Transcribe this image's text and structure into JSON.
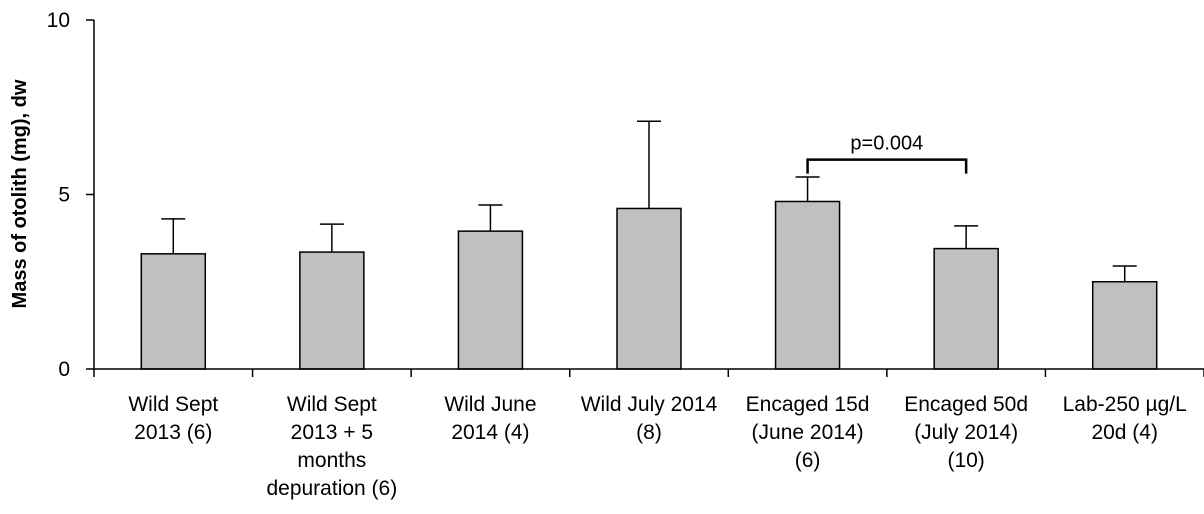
{
  "chart_data": {
    "type": "bar",
    "title": "",
    "xlabel": "",
    "ylabel": "Mass of otolith (mg), dw",
    "ylim": [
      0,
      10
    ],
    "yticks": [
      0,
      5,
      10
    ],
    "grid": false,
    "legend": "none",
    "bar_color": "#c0c0c0",
    "categories": [
      "Wild Sept 2013 (6)",
      "Wild Sept 2013 + 5 months depuration (6)",
      "Wild June 2014 (4)",
      "Wild July 2014 (8)",
      "Encaged 15d (June 2014) (6)",
      "Encaged 50d (July 2014) (10)",
      "Lab-250 µg/L 20d (4)"
    ],
    "category_lines": [
      [
        "Wild Sept",
        "2013 (6)"
      ],
      [
        "Wild Sept",
        "2013 +  5",
        "months",
        "depuration (6)"
      ],
      [
        "Wild June",
        "2014 (4)"
      ],
      [
        "Wild July 2014",
        "(8)"
      ],
      [
        "Encaged 15d",
        "(June 2014)",
        "(6)"
      ],
      [
        "Encaged 50d",
        "(July 2014)",
        "(10)"
      ],
      [
        "Lab-250 µg/L",
        "20d (4)"
      ]
    ],
    "values": [
      3.3,
      3.35,
      3.95,
      4.6,
      4.8,
      3.45,
      2.5
    ],
    "errors": [
      1.0,
      0.8,
      0.75,
      2.5,
      0.7,
      0.65,
      0.45
    ],
    "annotations": [
      {
        "text": "p=0.004",
        "from_index": 4,
        "to_index": 5,
        "at_value": 6.0
      }
    ]
  }
}
